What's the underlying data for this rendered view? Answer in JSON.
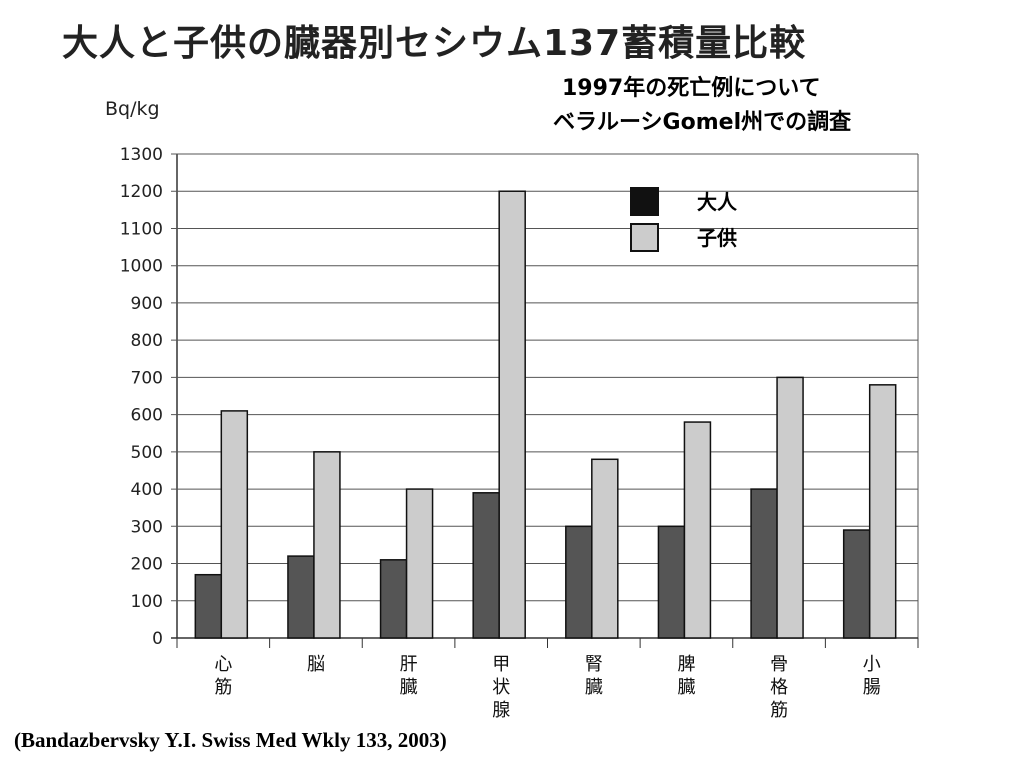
{
  "title": "大人と子供の臓器別セシウム137蓄積量比較",
  "subtitle_line1": "1997年の死亡例について",
  "subtitle_line2": "ベラルーシGomel州での調査",
  "citation": "(Bandazbervsky Y.I. Swiss Med Wkly 133, 2003)",
  "chart_data": {
    "type": "bar",
    "ylabel": "Bq/kg",
    "ylim": [
      0,
      1300
    ],
    "yticks": [
      0,
      100,
      200,
      300,
      400,
      500,
      600,
      700,
      800,
      900,
      1000,
      1100,
      1200,
      1300
    ],
    "grid": true,
    "legend_position": "top-right",
    "categories": [
      [
        "心",
        "筋"
      ],
      [
        "脳"
      ],
      [
        "肝",
        "臓"
      ],
      [
        "甲",
        "状",
        "腺"
      ],
      [
        "腎",
        "臓"
      ],
      [
        "脾",
        "臓"
      ],
      [
        "骨",
        "格",
        "筋"
      ],
      [
        "小",
        "腸"
      ]
    ],
    "series": [
      {
        "name": "大人",
        "color": "#555555",
        "values": [
          170,
          220,
          210,
          390,
          300,
          300,
          400,
          290
        ]
      },
      {
        "name": "子供",
        "color": "#cccccc",
        "values": [
          610,
          500,
          400,
          1200,
          480,
          580,
          700,
          680
        ]
      }
    ]
  }
}
